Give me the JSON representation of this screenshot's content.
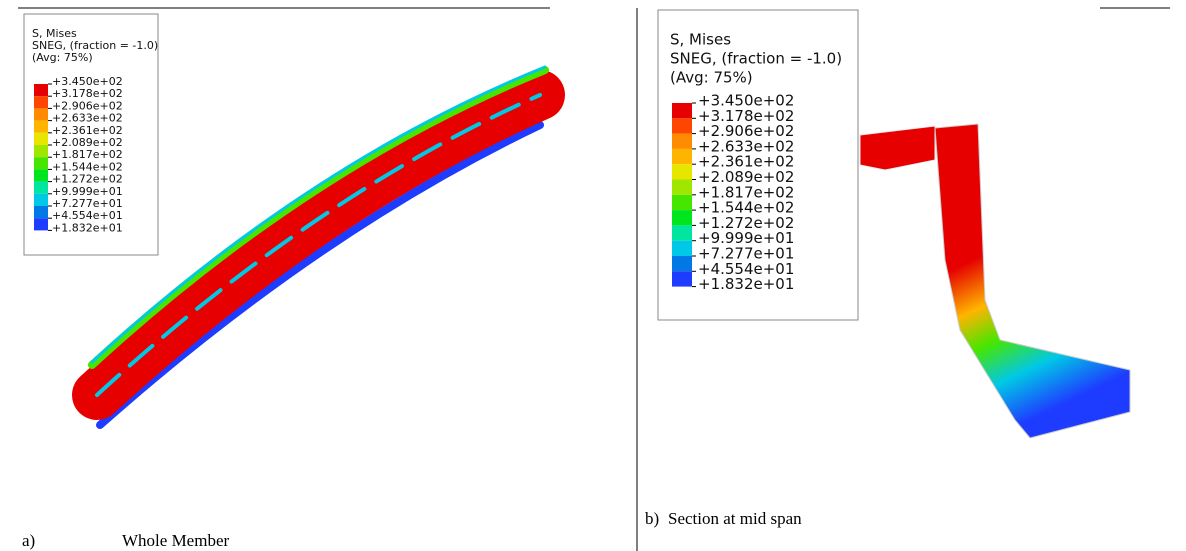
{
  "panels": [
    {
      "legend": {
        "title": [
          "S, Mises",
          "SNEG, (fraction = -1.0)",
          "(Avg: 75%)"
        ],
        "labels": [
          "+3.450e+02",
          "+3.178e+02",
          "+2.906e+02",
          "+2.633e+02",
          "+2.361e+02",
          "+2.089e+02",
          "+1.817e+02",
          "+1.544e+02",
          "+1.272e+02",
          "+9.999e+01",
          "+7.277e+01",
          "+4.554e+01",
          "+1.832e+01"
        ]
      },
      "caption": {
        "label": "a)",
        "text": "Whole Member"
      }
    },
    {
      "legend": {
        "title": [
          "S, Mises",
          "SNEG, (fraction = -1.0)",
          "(Avg: 75%)"
        ],
        "labels": [
          "+3.450e+02",
          "+3.178e+02",
          "+2.906e+02",
          "+2.633e+02",
          "+2.361e+02",
          "+2.089e+02",
          "+1.817e+02",
          "+1.544e+02",
          "+1.272e+02",
          "+9.999e+01",
          "+7.277e+01",
          "+4.554e+01",
          "+1.832e+01"
        ]
      },
      "caption": {
        "label": "b)",
        "text": "Section at mid span"
      }
    }
  ]
}
